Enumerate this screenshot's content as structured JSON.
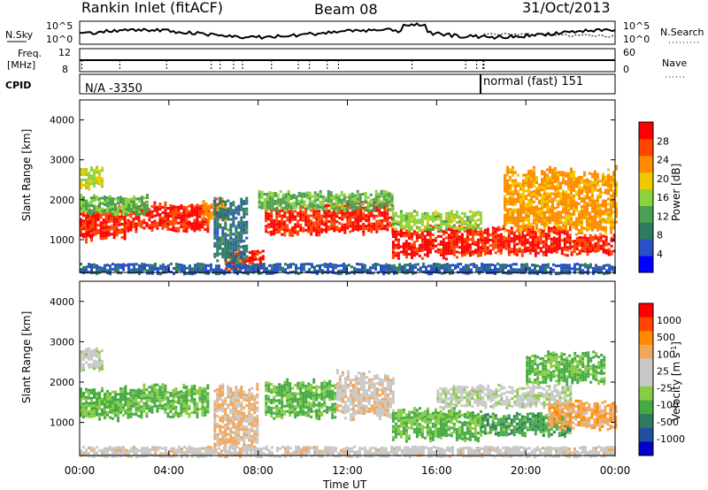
{
  "header": {
    "station": "Rankin Inlet (fitACF)",
    "beam": "Beam 08",
    "date": "31/Oct/2013"
  },
  "summary_panels": {
    "nsky_label": "N.Sky",
    "nsearch_label": "N.Search",
    "nsky_ticks": [
      "10^5",
      "10^0"
    ],
    "nsearch_ticks": [
      "10^5",
      "10^0"
    ],
    "freq_label_1": "Freq.",
    "freq_label_2": "[MHz]",
    "freq_ticks": [
      "12",
      "8"
    ],
    "nave_label": "Nave",
    "nave_ticks": [
      "60",
      "0"
    ],
    "cpid_label": "CPID",
    "cpid_1": "N/A -3350",
    "cpid_2": "normal (fast) 151"
  },
  "colors": {
    "power": [
      "#0000ff",
      "#2850c8",
      "#2e7a62",
      "#4aa050",
      "#8cd23c",
      "#f0c800",
      "#ff8c00",
      "#ff4600",
      "#ff0000"
    ],
    "velocity": [
      "#ff0000",
      "#ff4600",
      "#ff8c00",
      "#f2a65a",
      "#c8c8c8",
      "#c8c8c8",
      "#88cc44",
      "#44aa44",
      "#2e7a62",
      "#2050a0",
      "#0000c8"
    ]
  },
  "chart_data": [
    {
      "type": "heatmap",
      "title": "",
      "xlabel": "Time UT",
      "ylabel": "Slant Range [km]",
      "x_ticks": [
        "00:00",
        "04:00",
        "08:00",
        "12:00",
        "16:00",
        "20:00",
        "00:00"
      ],
      "x_range_hours": [
        0,
        24
      ],
      "ylim": [
        180,
        4500
      ],
      "y_ticks": [
        1000,
        2000,
        3000,
        4000
      ],
      "colorbar": {
        "label": "Power [dB]",
        "ticks": [
          "4",
          "8",
          "12",
          "16",
          "20",
          "24",
          "28"
        ],
        "range": [
          0,
          30
        ]
      },
      "bands": [
        {
          "t0": 0.0,
          "t1": 0.5,
          "r0": 1000,
          "r1": 1700,
          "value": 27
        },
        {
          "t0": 0.3,
          "t1": 2.0,
          "r0": 1100,
          "r1": 1800,
          "value": 27
        },
        {
          "t0": 2.0,
          "t1": 5.8,
          "r0": 1300,
          "r1": 1900,
          "value": 27
        },
        {
          "t0": 5.5,
          "t1": 6.5,
          "r0": 1500,
          "r1": 2000,
          "value": 22
        },
        {
          "t0": 6.5,
          "t1": 8.2,
          "r0": 300,
          "r1": 700,
          "value": 27
        },
        {
          "t0": 8.3,
          "t1": 11.0,
          "r0": 1200,
          "r1": 1800,
          "value": 27
        },
        {
          "t0": 11.0,
          "t1": 14.0,
          "r0": 1200,
          "r1": 1900,
          "value": 27
        },
        {
          "t0": 14.0,
          "t1": 18.0,
          "r0": 600,
          "r1": 1300,
          "value": 27
        },
        {
          "t0": 18.0,
          "t1": 22.0,
          "r0": 700,
          "r1": 1300,
          "value": 27
        },
        {
          "t0": 22.0,
          "t1": 24.0,
          "r0": 700,
          "r1": 1100,
          "value": 27
        },
        {
          "t0": 0.0,
          "t1": 3.0,
          "r0": 1700,
          "r1": 2100,
          "value": 13
        },
        {
          "t0": 8.0,
          "t1": 14.0,
          "r0": 1800,
          "r1": 2200,
          "value": 13
        },
        {
          "t0": 14.0,
          "t1": 18.0,
          "r0": 1300,
          "r1": 1700,
          "value": 15
        },
        {
          "t0": 0.0,
          "t1": 1.0,
          "r0": 2300,
          "r1": 2800,
          "value": 17
        },
        {
          "t0": 6.0,
          "t1": 7.5,
          "r0": 500,
          "r1": 2000,
          "value": 8
        },
        {
          "t0": 19.0,
          "t1": 24.0,
          "r0": 1300,
          "r1": 2700,
          "value": 21
        },
        {
          "t0": 0.0,
          "t1": 24.0,
          "r0": 180,
          "r1": 400,
          "value": 6
        }
      ]
    },
    {
      "type": "heatmap",
      "title": "",
      "xlabel": "Time UT",
      "ylabel": "Slant Range [km]",
      "x_ticks": [
        "00:00",
        "04:00",
        "08:00",
        "12:00",
        "16:00",
        "20:00",
        "00:00"
      ],
      "x_range_hours": [
        0,
        24
      ],
      "ylim": [
        180,
        4500
      ],
      "y_ticks": [
        1000,
        2000,
        3000,
        4000
      ],
      "colorbar": {
        "label": "Velocity [m s^-1]",
        "ticks": [
          "1000",
          "500",
          "100",
          "25",
          "-25",
          "-100",
          "-500",
          "-1000"
        ],
        "range": [
          -1000,
          1000
        ]
      },
      "bands": [
        {
          "t0": 0.0,
          "t1": 2.0,
          "r0": 1100,
          "r1": 1800,
          "value": -300
        },
        {
          "t0": 2.0,
          "t1": 5.8,
          "r0": 1200,
          "r1": 1900,
          "value": -300
        },
        {
          "t0": 0.0,
          "t1": 1.0,
          "r0": 2300,
          "r1": 2800,
          "value": 0
        },
        {
          "t0": 6.0,
          "t1": 8.0,
          "r0": 300,
          "r1": 1800,
          "value": 300
        },
        {
          "t0": 8.3,
          "t1": 11.5,
          "r0": 1200,
          "r1": 2000,
          "value": -300
        },
        {
          "t0": 11.5,
          "t1": 14.0,
          "r0": 1200,
          "r1": 2200,
          "value": 200
        },
        {
          "t0": 14.0,
          "t1": 18.0,
          "r0": 600,
          "r1": 1300,
          "value": -300
        },
        {
          "t0": 16.0,
          "t1": 22.0,
          "r0": 1400,
          "r1": 1900,
          "value": 0
        },
        {
          "t0": 18.0,
          "t1": 22.0,
          "r0": 700,
          "r1": 1200,
          "value": -400
        },
        {
          "t0": 21.0,
          "t1": 24.0,
          "r0": 900,
          "r1": 1500,
          "value": 400
        },
        {
          "t0": 20.0,
          "t1": 23.5,
          "r0": 2000,
          "r1": 2700,
          "value": -300
        },
        {
          "t0": 0.0,
          "t1": 24.0,
          "r0": 180,
          "r1": 400,
          "value": 150
        }
      ]
    }
  ]
}
